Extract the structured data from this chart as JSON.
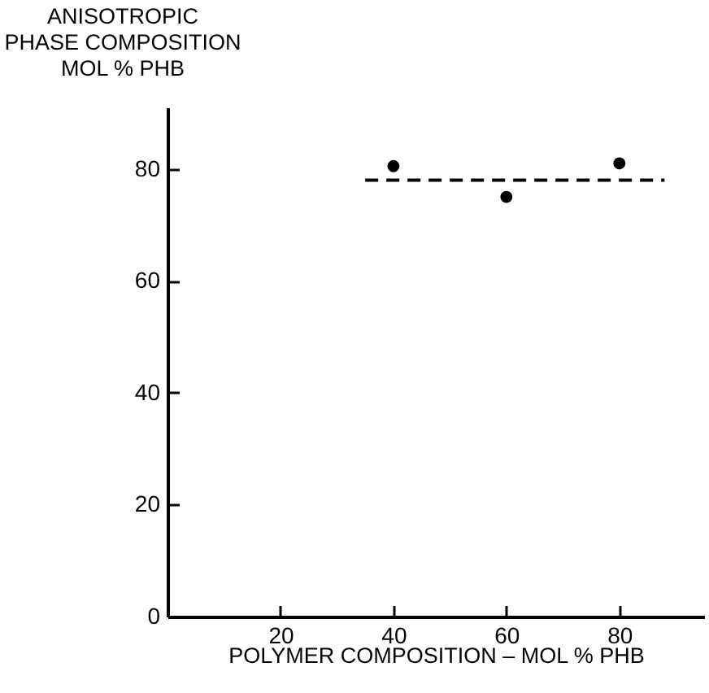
{
  "chart_data": {
    "type": "scatter",
    "xlabel": "POLYMER COMPOSITION – MOL % PHB",
    "ylabel": "ANISOTROPIC\nPHASE COMPOSITION\nMOL % PHB",
    "xlim": [
      0,
      95
    ],
    "xticks": [
      20,
      40,
      60,
      80
    ],
    "ylim": [
      0,
      91
    ],
    "yticks": [
      0,
      20,
      40,
      60,
      80
    ],
    "grid": false,
    "series": [
      {
        "color": "#000000",
        "marker": "circle",
        "x": [
          40,
          60,
          80
        ],
        "values": [
          80.5,
          75,
          81
        ]
      },
      {
        "type": "line",
        "color": "#000000",
        "line_style": "dashed",
        "marker": "none",
        "x": [
          35,
          88
        ],
        "values": [
          78,
          78
        ]
      }
    ]
  }
}
